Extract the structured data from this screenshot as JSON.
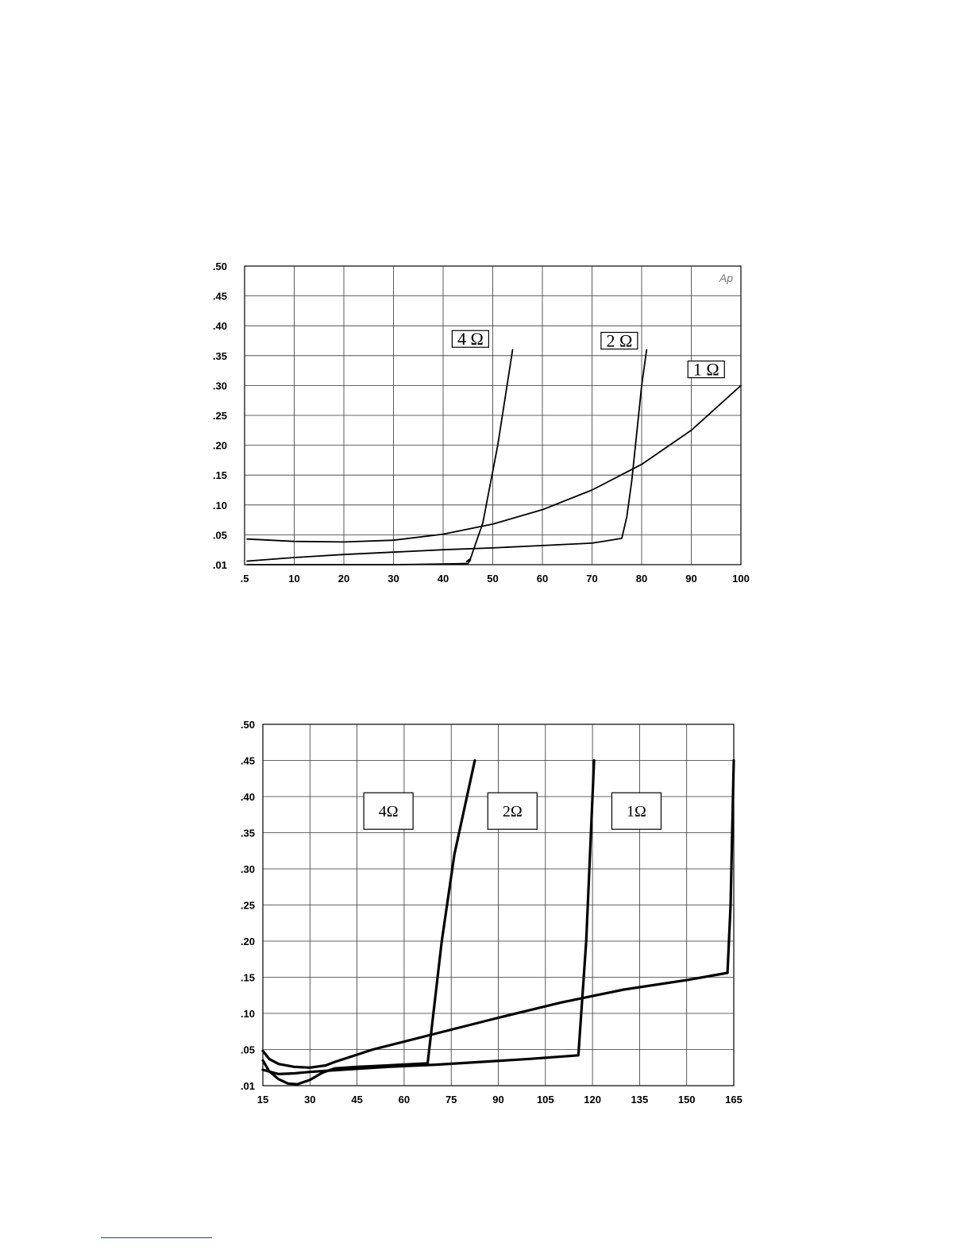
{
  "chart_data": [
    {
      "type": "line",
      "title": "",
      "xlabel": "",
      "ylabel": "",
      "corner_label": "Ap",
      "x_ticks": [
        ".5",
        "10",
        "20",
        "30",
        "40",
        "50",
        "60",
        "70",
        "80",
        "90",
        "100"
      ],
      "y_ticks": [
        ".01",
        ".05",
        ".10",
        ".15",
        ".20",
        ".25",
        ".30",
        ".35",
        ".40",
        ".45",
        ".50"
      ],
      "xlim": [
        0,
        100
      ],
      "ylim": [
        0,
        0.5
      ],
      "grid": true,
      "series": [
        {
          "name": "4 Ω",
          "label_x": 45.5,
          "label_y": 0.378,
          "points": [
            [
              0.5,
              0
            ],
            [
              10,
              0
            ],
            [
              20,
              0
            ],
            [
              30,
              0
            ],
            [
              40,
              0.001
            ],
            [
              45,
              0.002
            ],
            [
              45.5,
              0.008
            ],
            [
              44.7,
              0.005
            ],
            [
              45.5,
              0.01
            ],
            [
              48,
              0.07
            ],
            [
              51,
              0.2
            ],
            [
              54,
              0.36
            ]
          ]
        },
        {
          "name": "2 Ω",
          "label_x": 75.5,
          "label_y": 0.375,
          "points": [
            [
              0.5,
              0.006
            ],
            [
              10,
              0.012
            ],
            [
              20,
              0.017
            ],
            [
              30,
              0.021
            ],
            [
              40,
              0.025
            ],
            [
              50,
              0.028
            ],
            [
              60,
              0.032
            ],
            [
              70,
              0.036
            ],
            [
              76,
              0.044
            ],
            [
              77,
              0.08
            ],
            [
              78,
              0.14
            ],
            [
              79,
              0.22
            ],
            [
              80,
              0.3
            ],
            [
              81,
              0.36
            ]
          ]
        },
        {
          "name": "1 Ω",
          "label_x": 93,
          "label_y": 0.327,
          "points": [
            [
              0.5,
              0.043
            ],
            [
              10,
              0.039
            ],
            [
              20,
              0.038
            ],
            [
              30,
              0.041
            ],
            [
              40,
              0.051
            ],
            [
              50,
              0.068
            ],
            [
              60,
              0.092
            ],
            [
              70,
              0.125
            ],
            [
              80,
              0.168
            ],
            [
              90,
              0.225
            ],
            [
              100,
              0.3
            ]
          ]
        }
      ]
    },
    {
      "type": "line",
      "title": "",
      "xlabel": "",
      "ylabel": "",
      "x_ticks": [
        "15",
        "30",
        "45",
        "60",
        "75",
        "90",
        "105",
        "120",
        "135",
        "150",
        "165"
      ],
      "y_ticks": [
        ".01",
        ".05",
        ".10",
        ".15",
        ".20",
        ".25",
        ".30",
        ".35",
        ".40",
        ".45",
        ".50"
      ],
      "xlim": [
        15,
        165
      ],
      "ylim": [
        0,
        0.5
      ],
      "grid": true,
      "series": [
        {
          "name": "4Ω",
          "label_x": 55,
          "label_y": 0.38,
          "points": [
            [
              15,
              0.035
            ],
            [
              17,
              0.02
            ],
            [
              20,
              0.009
            ],
            [
              23,
              0.003
            ],
            [
              26,
              0.002
            ],
            [
              30,
              0.008
            ],
            [
              34,
              0.018
            ],
            [
              38,
              0.024
            ],
            [
              45,
              0.026
            ],
            [
              55,
              0.028
            ],
            [
              67.5,
              0.031
            ],
            [
              72,
              0.2
            ],
            [
              76,
              0.32
            ],
            [
              82.5,
              0.45
            ]
          ]
        },
        {
          "name": "2Ω",
          "label_x": 94.5,
          "label_y": 0.38,
          "points": [
            [
              15,
              0.022
            ],
            [
              20,
              0.016
            ],
            [
              25,
              0.017
            ],
            [
              30,
              0.019
            ],
            [
              40,
              0.022
            ],
            [
              55,
              0.026
            ],
            [
              70,
              0.029
            ],
            [
              85,
              0.033
            ],
            [
              100,
              0.037
            ],
            [
              115.5,
              0.042
            ],
            [
              118,
              0.2
            ],
            [
              120.5,
              0.45
            ]
          ]
        },
        {
          "name": "1Ω",
          "label_x": 134,
          "label_y": 0.38,
          "points": [
            [
              15,
              0.048
            ],
            [
              17,
              0.037
            ],
            [
              20,
              0.03
            ],
            [
              25,
              0.026
            ],
            [
              30,
              0.025
            ],
            [
              35,
              0.028
            ],
            [
              38,
              0.033
            ],
            [
              50,
              0.05
            ],
            [
              70,
              0.072
            ],
            [
              90,
              0.094
            ],
            [
              110,
              0.115
            ],
            [
              130,
              0.133
            ],
            [
              150,
              0.146
            ],
            [
              163,
              0.156
            ],
            [
              164,
              0.25
            ],
            [
              164.5,
              0.35
            ],
            [
              165,
              0.45
            ]
          ]
        }
      ]
    }
  ]
}
